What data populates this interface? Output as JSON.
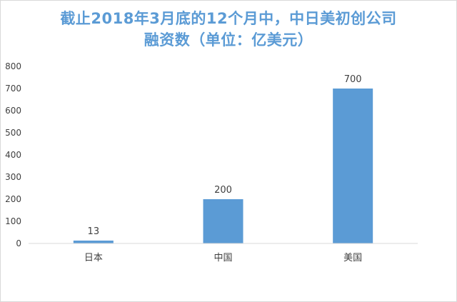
{
  "chart_data": {
    "type": "bar",
    "title_lines": [
      "截止2018年3月底的12个月中，中日美初创公司",
      "融资数（单位：亿美元）"
    ],
    "categories": [
      "日本",
      "中国",
      "美国"
    ],
    "values": [
      13,
      200,
      700
    ],
    "data_labels": [
      "13",
      "200",
      "700"
    ],
    "ylim": [
      0,
      800
    ],
    "yticks": [
      0,
      100,
      200,
      300,
      400,
      500,
      600,
      700,
      800
    ],
    "grid": false,
    "legend": "none",
    "bar_color": "#5b9bd5",
    "title_color": "#5b9bd5",
    "axis_color": "#d9d9d9",
    "text_color": "#404040"
  }
}
